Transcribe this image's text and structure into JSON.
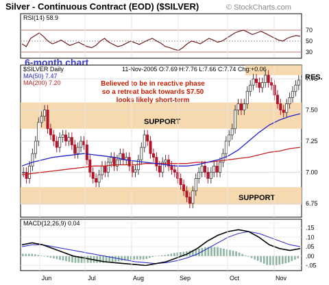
{
  "header": {
    "title": "Silver - Continuous Contract (EOD) ($SILVER)",
    "credit": "© StockCharts.com"
  },
  "rsi": {
    "label": "RSI(14) 58.9",
    "levels": [
      "70",
      "50",
      "30"
    ]
  },
  "annotations": {
    "period": "6-month chart",
    "note_line1": "Believed to be in reactive phase",
    "note_line2": "so a retreat back towards $7.50",
    "note_line3": "looks likely short-term",
    "resistance": "RES.",
    "support_upper": "SUPPORT",
    "support_lower": "SUPPORT"
  },
  "price_panel": {
    "symbol": "$SILVER Daily",
    "quote": "11-Nov-2005 O:7.69 H:7.76 L:7.66 C:7.74 Chg:+0.06",
    "ma50_label": "MA(50) 7.47",
    "ma200_label": "MA(200) 7.20"
  },
  "macd": {
    "label": "MACD(12,26,9) 0.04",
    "ticks": [
      ".15",
      ".10",
      ".05",
      ".00",
      "-.05"
    ]
  },
  "colors": {
    "support_band": "#f7d9b0",
    "rsi_line": "#6b1a1a",
    "ma50": "#1e1ec8",
    "ma200": "#c81e1e",
    "candle_up": "#3a3a3a",
    "candle_down": "#b4142a",
    "macd_hist": "#8cb4a0"
  },
  "chart_data": {
    "type": "candlestick",
    "x_months": [
      "Jun",
      "Jul",
      "Aug",
      "Sep",
      "Oct",
      "Nov"
    ],
    "y_ticks": [
      "7.75",
      "7.50",
      "7.25",
      "7.00",
      "6.75"
    ],
    "ylim": [
      6.65,
      7.85
    ],
    "support_zones": [
      [
        7.35,
        7.56
      ],
      [
        6.74,
        6.88
      ]
    ],
    "resistance_zone": [
      7.78,
      7.86
    ],
    "closes": [
      7.0,
      6.95,
      7.05,
      7.15,
      7.25,
      7.4,
      7.45,
      7.5,
      7.35,
      7.3,
      7.25,
      7.2,
      7.28,
      7.3,
      7.25,
      7.28,
      7.22,
      7.15,
      7.2,
      7.25,
      7.22,
      7.1,
      7.0,
      6.95,
      6.92,
      6.98,
      7.05,
      7.0,
      7.08,
      7.12,
      7.05,
      7.1,
      7.15,
      7.1,
      7.12,
      7.05,
      7.0,
      7.02,
      7.1,
      7.2,
      7.3,
      7.25,
      7.15,
      7.12,
      7.05,
      7.0,
      7.08,
      7.1,
      7.05,
      7.02,
      7.0,
      6.95,
      6.9,
      6.85,
      6.8,
      6.75,
      6.85,
      6.95,
      7.0,
      7.05,
      7.0,
      6.95,
      7.0,
      7.05,
      7.0,
      7.08,
      7.15,
      7.25,
      7.3,
      7.35,
      7.5,
      7.55,
      7.5,
      7.55,
      7.65,
      7.7,
      7.75,
      7.72,
      7.68,
      7.72,
      7.78,
      7.72,
      7.7,
      7.62,
      7.55,
      7.5,
      7.48,
      7.55,
      7.6,
      7.65,
      7.7,
      7.74
    ],
    "ma50": [
      7.05,
      7.08,
      7.1,
      7.12,
      7.13,
      7.14,
      7.15,
      7.14,
      7.13,
      7.12,
      7.1,
      7.09,
      7.08,
      7.07,
      7.06,
      7.05,
      7.05,
      7.06,
      7.08,
      7.1,
      7.13,
      7.18,
      7.25,
      7.32,
      7.38,
      7.42,
      7.45,
      7.47
    ],
    "ma200": [
      6.98,
      6.99,
      7.0,
      7.01,
      7.02,
      7.03,
      7.04,
      7.05,
      7.05,
      7.06,
      7.06,
      7.06,
      7.07,
      7.07,
      7.07,
      7.07,
      7.07,
      7.08,
      7.08,
      7.09,
      7.1,
      7.11,
      7.12,
      7.14,
      7.16,
      7.17,
      7.19,
      7.2
    ],
    "rsi_values": [
      45,
      40,
      55,
      60,
      65,
      58,
      50,
      45,
      48,
      52,
      47,
      42,
      45,
      48,
      44,
      40,
      38,
      42,
      50,
      55,
      48,
      44,
      40,
      42,
      46,
      50,
      47,
      44,
      48,
      52,
      55,
      50,
      46,
      40,
      38,
      35,
      33,
      38,
      45,
      50,
      48,
      45,
      50,
      55,
      52,
      48,
      50,
      55,
      60,
      65,
      68,
      70,
      66,
      62,
      65,
      68,
      64,
      60,
      56,
      52,
      50,
      55,
      58,
      60,
      58.9
    ],
    "macd_line": [
      0.06,
      0.07,
      0.06,
      0.04,
      0.02,
      0.0,
      -0.01,
      -0.02,
      -0.03,
      -0.035,
      -0.04,
      -0.045,
      -0.05,
      -0.04,
      -0.03,
      -0.01,
      0.01,
      0.04,
      0.08,
      0.11,
      0.13,
      0.14,
      0.13,
      0.1,
      0.06,
      0.04,
      0.03,
      0.04
    ],
    "macd_signal": [
      0.05,
      0.06,
      0.06,
      0.05,
      0.04,
      0.03,
      0.02,
      0.01,
      0.0,
      -0.01,
      -0.02,
      -0.03,
      -0.035,
      -0.04,
      -0.035,
      -0.025,
      -0.01,
      0.01,
      0.04,
      0.07,
      0.1,
      0.12,
      0.13,
      0.12,
      0.1,
      0.08,
      0.06,
      0.05
    ]
  }
}
